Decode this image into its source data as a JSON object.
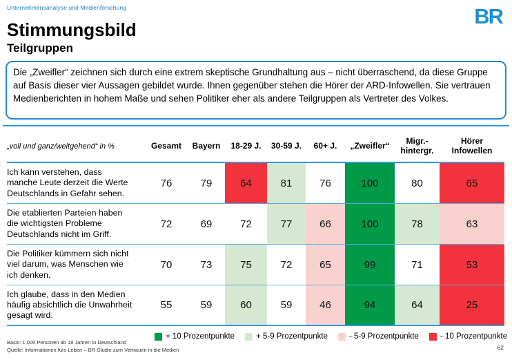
{
  "header": {
    "department": "Unternehmensanalyse und Medienforschung",
    "logo": "BR",
    "title": "Stimmungsbild",
    "subtitle": "Teilgruppen"
  },
  "summary_box": {
    "text": "Die „Zweifler“ zeichnen sich durch eine extrem skeptische Grundhaltung aus – nicht überraschend, da diese Gruppe auf Basis dieser vier Aussagen gebildet wurde. Ihnen gegenüber stehen die Hörer der ARD-Infowellen. Sie vertrauen Medienberichten in hohem Maße und sehen Politiker eher als andere Teilgruppen als Vertreter des Volkes."
  },
  "table": {
    "row_label_header": "„voll und ganz/weitgehend“ in %",
    "highlights": [
      [
        "none",
        "none",
        "minus10",
        "plus5",
        "none",
        "plus10",
        "none",
        "minus10"
      ],
      [
        "none",
        "none",
        "none",
        "plus5",
        "minus5",
        "plus10",
        "plus5",
        "minus5"
      ],
      [
        "none",
        "none",
        "plus5",
        "none",
        "minus5",
        "plus10",
        "none",
        "minus10"
      ],
      [
        "none",
        "none",
        "plus5",
        "none",
        "minus5",
        "plus10",
        "plus5",
        "minus10"
      ]
    ]
  },
  "colors": {
    "none": "#ffffff",
    "plus10": "#009a49",
    "plus5": "#d7e8d2",
    "minus5": "#f9d2d0",
    "minus10": "#f2333e"
  },
  "legend": [
    {
      "label": "+ 10 Prozentpunkte",
      "color": "#009a49"
    },
    {
      "label": "+ 5-9 Prozentpunkte",
      "color": "#d7e8d2"
    },
    {
      "label": "- 5-9 Prozentpunkte",
      "color": "#f9d2d0"
    },
    {
      "label": "- 10 Prozentpunkte",
      "color": "#f2333e"
    }
  ],
  "footer": {
    "basis": "Basis: 1.000 Personen ab 18 Jahren in Deutschland",
    "quelle": "Quelle: Informationen fürs Leben – BR-Studie zum Vertrauen in die Medien",
    "page_number": "62"
  },
  "chart_data": {
    "type": "table",
    "title": "Stimmungsbild – Teilgruppen",
    "unit": "„voll und ganz/weitgehend“ in %",
    "columns": [
      "Gesamt",
      "Bayern",
      "18-29 J.",
      "30-59 J.",
      "60+ J.",
      "„Zweifler“",
      "Migr.-hintergr.",
      "Hörer Infowellen"
    ],
    "rows": [
      {
        "statement": "Ich kann verstehen, dass manche Leute derzeit die Werte Deutschlands in Gefahr sehen.",
        "values": [
          76,
          79,
          64,
          81,
          76,
          100,
          80,
          65
        ]
      },
      {
        "statement": "Die etablierten Parteien haben die wichtigsten Probleme Deutschlands nicht im Griff.",
        "values": [
          72,
          69,
          72,
          77,
          66,
          100,
          78,
          63
        ]
      },
      {
        "statement": "Die Politiker kümmern sich nicht viel darum, was Menschen wie ich denken.",
        "values": [
          70,
          73,
          75,
          72,
          65,
          99,
          71,
          53
        ]
      },
      {
        "statement": "Ich glaube, dass in den Medien häufig absichtlich die Unwahrheit gesagt wird.",
        "values": [
          55,
          59,
          60,
          59,
          46,
          94,
          64,
          25
        ]
      }
    ],
    "color_coding_legend": {
      "plus10": "+ 10 Prozentpunkte",
      "plus5": "+ 5-9 Prozentpunkte",
      "minus5": "- 5-9 Prozentpunkte",
      "minus10": "- 10 Prozentpunkte"
    }
  }
}
